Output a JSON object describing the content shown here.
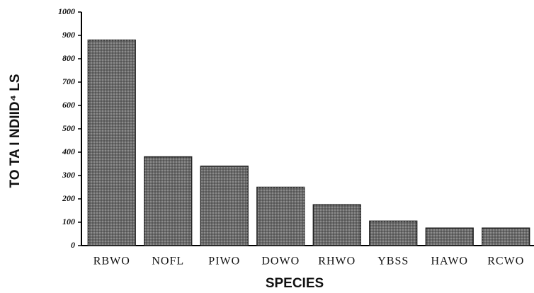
{
  "chart_data": {
    "type": "bar",
    "ylabel": "TO TA I NDIID⁴ LS",
    "xlabel": "SPECIES",
    "categories": [
      "RBWO",
      "NOFL",
      "PIWO",
      "DOWO",
      "RHWO",
      "YBSS",
      "HAWO",
      "RCWO"
    ],
    "values": [
      880,
      380,
      340,
      250,
      175,
      105,
      75,
      75
    ],
    "color": "#6b6b6b",
    "ylim": [
      0,
      1000
    ],
    "yticks": [
      0,
      100,
      200,
      300,
      400,
      500,
      600,
      700,
      800,
      900,
      1000
    ],
    "grid": false
  }
}
